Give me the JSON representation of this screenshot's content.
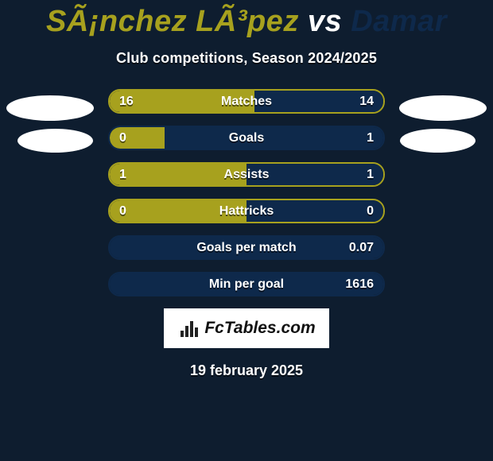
{
  "colors": {
    "background": "#0e1d2f",
    "player1": "#a7a11e",
    "player2": "#0e294b",
    "white": "#ffffff",
    "text_shadow": "rgba(0,0,0,0.55)"
  },
  "title": {
    "player1": "SÃ¡nchez LÃ³pez",
    "vs": "vs",
    "player2": "Damar"
  },
  "subtitle": "Club competitions, Season 2024/2025",
  "bars": [
    {
      "label": "Matches",
      "left_value": "16",
      "right_value": "14",
      "left_pct": 53,
      "right_pct": 47,
      "border": "player1"
    },
    {
      "label": "Goals",
      "left_value": "0",
      "right_value": "1",
      "left_pct": 20,
      "right_pct": 80,
      "border": "player2"
    },
    {
      "label": "Assists",
      "left_value": "1",
      "right_value": "1",
      "left_pct": 50,
      "right_pct": 50,
      "border": "player1"
    },
    {
      "label": "Hattricks",
      "left_value": "0",
      "right_value": "0",
      "left_pct": 50,
      "right_pct": 50,
      "border": "player1"
    },
    {
      "label": "Goals per match",
      "left_value": "",
      "right_value": "0.07",
      "left_pct": 0,
      "right_pct": 100,
      "border": "player2"
    },
    {
      "label": "Min per goal",
      "left_value": "",
      "right_value": "1616",
      "left_pct": 0,
      "right_pct": 100,
      "border": "player2"
    }
  ],
  "logo": {
    "text": "FcTables.com"
  },
  "date": "19 february 2025"
}
